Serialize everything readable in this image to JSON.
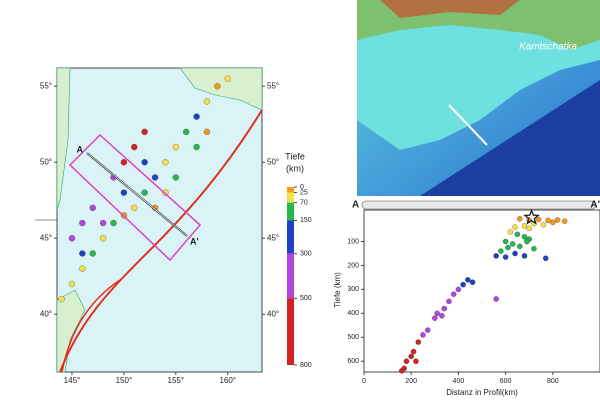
{
  "map": {
    "lonlim": [
      143.56,
      163.3
    ],
    "latlim": [
      36.2,
      56.2
    ],
    "lon_ticks": [
      {
        "value": 145,
        "label": "145°"
      },
      {
        "value": 150,
        "label": "150°"
      },
      {
        "value": 155,
        "label": "155°"
      },
      {
        "value": 160,
        "label": "160°"
      }
    ],
    "lat_ticks": [
      {
        "value": 40,
        "label": "40°"
      },
      {
        "value": 45,
        "label": "45°"
      },
      {
        "value": 50,
        "label": "50°"
      },
      {
        "value": 55,
        "label": "55°"
      }
    ],
    "profile_labels": [
      "A",
      "A'"
    ],
    "quakes": {
      "lon": [
        145,
        146,
        147,
        148,
        149,
        150,
        151,
        152,
        153,
        154,
        155,
        156,
        157,
        158,
        159,
        160,
        146,
        148,
        147,
        149,
        150,
        151,
        152,
        145,
        153,
        155,
        157,
        154,
        144,
        158,
        150,
        152,
        146
      ],
      "lat": [
        42,
        43,
        44,
        45,
        46,
        46.5,
        47,
        48,
        49,
        50,
        51,
        52,
        53,
        54,
        55,
        55.5,
        44,
        46,
        47,
        49,
        50,
        51,
        52,
        45,
        47,
        49,
        51,
        48,
        41,
        52,
        48,
        50,
        46
      ],
      "depth": [
        30,
        60,
        100,
        40,
        120,
        20,
        60,
        100,
        200,
        60,
        30,
        90,
        150,
        40,
        20,
        60,
        200,
        300,
        400,
        350,
        550,
        600,
        500,
        450,
        20,
        100,
        120,
        40,
        50,
        10,
        250,
        200,
        350
      ]
    }
  },
  "colorbar": {
    "title": "Tiefe",
    "unit": "(km)",
    "lim": [
      0,
      800
    ],
    "ticks": [
      0,
      25,
      70,
      150,
      300,
      500,
      800
    ],
    "colors": [
      "#f39a1a",
      "#f4e04a",
      "#25b84a",
      "#1f3fc4",
      "#b245dc",
      "#d42222"
    ]
  },
  "image": {
    "label": "Kamtschatka"
  },
  "chart_data": {
    "type": "scatter",
    "xlabel": "Distanz in Profil(km)",
    "ylabel": "Tiefe (km)",
    "end_labels": [
      "A",
      "A'"
    ],
    "xlim": [
      0,
      1000
    ],
    "ylim": [
      -40,
      645
    ],
    "inverted_y": true,
    "xticks": [
      0,
      200,
      400,
      600,
      800
    ],
    "yticks": [
      100,
      200,
      300,
      400,
      500,
      600
    ],
    "star": {
      "x": 710,
      "y": 0
    },
    "x": [
      660,
      700,
      740,
      780,
      820,
      850,
      720,
      760,
      800,
      680,
      640,
      700,
      620,
      650,
      680,
      700,
      600,
      630,
      660,
      690,
      720,
      610,
      580,
      560,
      640,
      600,
      680,
      770,
      440,
      460,
      420,
      400,
      380,
      360,
      340,
      310,
      300,
      330,
      560,
      270,
      250,
      230,
      210,
      200,
      180,
      170,
      160,
      220
    ],
    "y": [
      5,
      10,
      8,
      12,
      10,
      15,
      25,
      30,
      20,
      35,
      40,
      45,
      60,
      70,
      80,
      90,
      100,
      110,
      120,
      100,
      130,
      125,
      140,
      160,
      150,
      165,
      160,
      170,
      260,
      270,
      280,
      300,
      320,
      350,
      380,
      400,
      420,
      410,
      340,
      470,
      490,
      520,
      560,
      580,
      600,
      630,
      640,
      600
    ]
  }
}
